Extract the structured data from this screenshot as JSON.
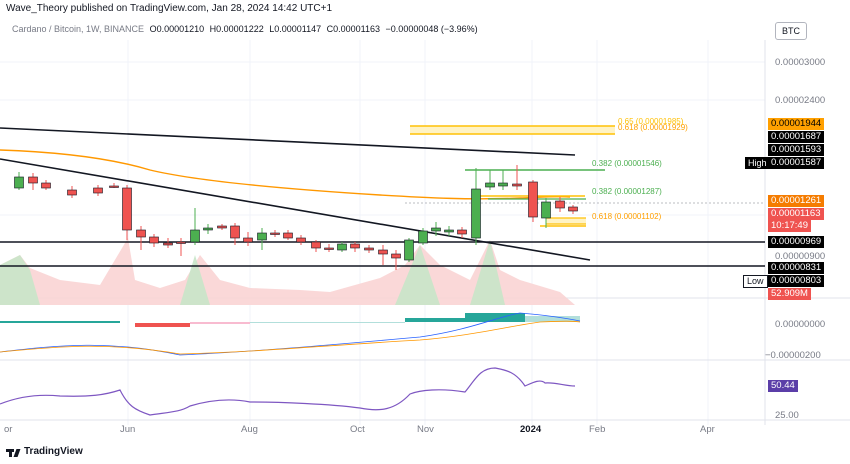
{
  "header": {
    "publish_line": "Wave_Theory published on TradingView.com, Jan 28, 2024 14:42 UTC+1"
  },
  "symbol_bar": {
    "name": "Cardano / Bitcoin, 1W, BINANCE",
    "open": "O0.00001210",
    "high": "H0.00001222",
    "low": "L0.00001147",
    "close": "C0.00001163",
    "change": "−0.00000048 (−3.96%)"
  },
  "currency_button": "BTC",
  "price_axis": {
    "ticks": [
      "0.00003000",
      "0.00002400",
      "0.00000900"
    ],
    "tags": {
      "fib_top": "0.00001944",
      "p1687": "0.00001687",
      "p1593": "0.00001593",
      "high": "0.00001587",
      "p1261": "0.00001261",
      "last": "0.00001163",
      "countdown": "10:17:49",
      "p969": "0.00000969",
      "p831": "0.00000831",
      "low": "0.00000803",
      "volume": "52.909M"
    },
    "high_label": "High",
    "low_label": "Low"
  },
  "fib_labels": {
    "f618_top": "0.618 (0.00001929)",
    "f65_top": "0.65 (0.00001985)",
    "f382_green": "0.382 (0.00001546)",
    "f382": "0.382 (0.00001287)",
    "f618": "0.618 (0.00001102)"
  },
  "macd_axis": {
    "ticks": [
      "0.00000000",
      "−0.00000200"
    ]
  },
  "rsi_axis": {
    "value": "50.44",
    "tick": "25.00"
  },
  "time_axis": [
    "or",
    "Jun",
    "Aug",
    "Oct",
    "Nov",
    "2024",
    "Feb",
    "Apr"
  ],
  "footer": {
    "brand": "TradingView"
  },
  "colors": {
    "up": "#4caf50",
    "down": "#ef5350",
    "ema": "#ff9800",
    "fib_yellow": "#ffc107",
    "fib_green": "#4caf50",
    "rsi": "#7e57c2"
  }
}
